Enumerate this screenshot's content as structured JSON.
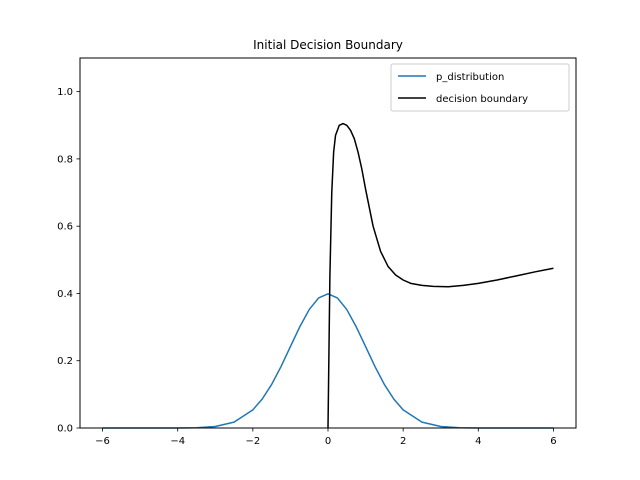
{
  "chart_data": {
    "type": "line",
    "title": "Initial Decision Boundary",
    "xlabel": "",
    "ylabel": "",
    "xlim": [
      -6.6,
      6.6
    ],
    "ylim": [
      0,
      1.1
    ],
    "xticks": [
      -6,
      -4,
      -2,
      0,
      2,
      4,
      6
    ],
    "xtick_labels": [
      "−6",
      "−4",
      "−2",
      "0",
      "2",
      "4",
      "6"
    ],
    "yticks": [
      0.0,
      0.2,
      0.4,
      0.6,
      0.8,
      1.0
    ],
    "ytick_labels": [
      "0.0",
      "0.2",
      "0.4",
      "0.6",
      "0.8",
      "1.0"
    ],
    "grid": false,
    "legend_position": "top-right",
    "series": [
      {
        "name": "p_distribution",
        "color": "#1f77b4",
        "x": [
          -6,
          -5,
          -4,
          -3.5,
          -3,
          -2.5,
          -2,
          -1.75,
          -1.5,
          -1.25,
          -1,
          -0.75,
          -0.5,
          -0.25,
          0,
          0.25,
          0.5,
          0.75,
          1,
          1.25,
          1.5,
          1.75,
          2,
          2.5,
          3,
          3.5,
          4,
          5,
          6
        ],
        "y": [
          0.0,
          0.0,
          0.0001,
          0.0009,
          0.0044,
          0.0175,
          0.054,
          0.0863,
          0.1295,
          0.1826,
          0.242,
          0.3011,
          0.3521,
          0.3867,
          0.3989,
          0.3867,
          0.3521,
          0.3011,
          0.242,
          0.1826,
          0.1295,
          0.0863,
          0.054,
          0.0175,
          0.0044,
          0.0009,
          0.0001,
          0.0,
          0.0
        ]
      },
      {
        "name": "decision boundary",
        "color": "#000000",
        "x": [
          0,
          0.05,
          0.1,
          0.15,
          0.2,
          0.3,
          0.4,
          0.5,
          0.6,
          0.7,
          0.8,
          0.9,
          1.0,
          1.2,
          1.4,
          1.6,
          1.8,
          2.0,
          2.2,
          2.5,
          2.8,
          3.2,
          3.6,
          4.0,
          4.5,
          5.0,
          5.5,
          6.0
        ],
        "y": [
          0.0,
          0.45,
          0.7,
          0.82,
          0.87,
          0.9,
          0.905,
          0.9,
          0.885,
          0.86,
          0.82,
          0.77,
          0.71,
          0.6,
          0.525,
          0.48,
          0.455,
          0.44,
          0.43,
          0.424,
          0.421,
          0.42,
          0.424,
          0.43,
          0.44,
          0.452,
          0.464,
          0.475
        ]
      }
    ]
  }
}
